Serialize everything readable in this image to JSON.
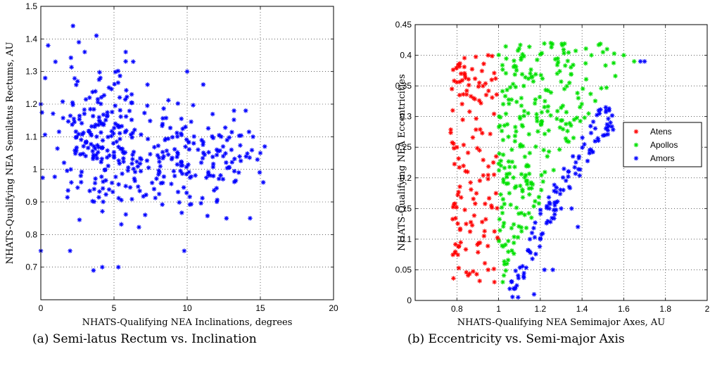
{
  "captions": {
    "a": "(a) Semi-latus Rectum vs. Inclination",
    "b": "(b) Eccentricity vs. Semi-major Axis"
  },
  "colors": {
    "red": "#ff0000",
    "green": "#00e000",
    "blue": "#0000ff"
  },
  "chart_data": [
    {
      "id": "a",
      "type": "scatter",
      "title": "",
      "xlabel": "NHATS-Qualifying NEA Inclinations, degrees",
      "ylabel": "NHATS-Qualifying NEA Semilatus Rectums, AU",
      "xlim": [
        0,
        20
      ],
      "ylim": [
        0.6,
        1.5
      ],
      "xticks": [
        0,
        5,
        10,
        15,
        20
      ],
      "yticks": [
        0.7,
        0.8,
        0.9,
        1,
        1.1,
        1.2,
        1.3,
        1.4,
        1.5
      ],
      "grid": true,
      "marker": "*",
      "series": [
        {
          "color": "#0000ff",
          "cluster_regions": [
            {
              "x_center": 4.5,
              "x_spread": 2.8,
              "y_center": 1.08,
              "y_spread": 0.17,
              "count": 230
            },
            {
              "x_center": 9.5,
              "x_spread": 2.5,
              "y_center": 1.02,
              "y_spread": 0.14,
              "count": 110
            },
            {
              "x_center": 13.0,
              "x_spread": 1.3,
              "y_center": 1.02,
              "y_spread": 0.1,
              "count": 40
            }
          ],
          "points": [
            [
              2.2,
              1.44
            ],
            [
              3.8,
              1.41
            ],
            [
              2.6,
              1.39
            ],
            [
              5.8,
              1.36
            ],
            [
              3.0,
              1.36
            ],
            [
              0.3,
              1.28
            ],
            [
              0.5,
              1.38
            ],
            [
              1.0,
              1.33
            ],
            [
              0.0,
              1.2
            ],
            [
              0.0,
              0.75
            ],
            [
              3.6,
              0.69
            ],
            [
              4.2,
              0.7
            ],
            [
              5.3,
              0.7
            ],
            [
              2.0,
              0.75
            ],
            [
              9.8,
              0.75
            ],
            [
              15.3,
              1.07
            ],
            [
              15.0,
              1.05
            ],
            [
              14.8,
              1.03
            ],
            [
              15.2,
              0.96
            ],
            [
              14.3,
              0.85
            ],
            [
              11.1,
              1.26
            ],
            [
              10.0,
              1.3
            ],
            [
              13.2,
              1.18
            ],
            [
              14.0,
              1.18
            ],
            [
              14.5,
              1.1
            ]
          ]
        }
      ]
    },
    {
      "id": "b",
      "type": "scatter",
      "title": "",
      "xlabel": "NHATS-Qualifying NEA Semimajor Axes, AU",
      "ylabel": "NHATS-Qualifying NEA Eccentricities",
      "xlim": [
        0.6,
        2
      ],
      "ylim": [
        0,
        0.45
      ],
      "xticks": [
        0.8,
        1,
        1.2,
        1.4,
        1.6,
        1.8,
        2
      ],
      "yticks": [
        0,
        0.05,
        0.1,
        0.15,
        0.2,
        0.25,
        0.3,
        0.35,
        0.4,
        0.45
      ],
      "grid": true,
      "marker": "*",
      "legend": {
        "position": "right",
        "entries": [
          "Atens",
          "Apollos",
          "Amors"
        ]
      },
      "series": [
        {
          "name": "Atens",
          "color": "#ff0000",
          "cluster_regions": [
            {
              "x_min": 0.77,
              "x_max": 1.0,
              "y_min": 0.03,
              "y_max": 0.4,
              "count": 140
            }
          ],
          "points": [
            [
              0.95,
              0.4
            ],
            [
              0.98,
              0.03
            ],
            [
              0.95,
              0.05
            ],
            [
              0.78,
              0.31
            ],
            [
              0.82,
              0.37
            ]
          ]
        },
        {
          "name": "Apollos",
          "color": "#00e000",
          "cluster_regions": [
            {
              "x_min": 1.0,
              "x_max": 1.6,
              "y_min": 0.03,
              "y_max": 0.42,
              "count": 260
            }
          ],
          "points": [
            [
              1.25,
              0.42
            ],
            [
              1.6,
              0.4
            ],
            [
              1.65,
              0.39
            ],
            [
              1.52,
              0.41
            ],
            [
              1.02,
              0.03
            ],
            [
              1.04,
              0.06
            ]
          ]
        },
        {
          "name": "Amors",
          "color": "#0000ff",
          "cluster_regions": [
            {
              "x_min": 1.05,
              "x_max": 1.55,
              "y_min": 0.01,
              "y_max": 0.33,
              "count": 110
            }
          ],
          "points": [
            [
              1.68,
              0.39
            ],
            [
              1.7,
              0.39
            ],
            [
              1.53,
              0.31
            ],
            [
              1.48,
              0.31
            ],
            [
              1.3,
              0.15
            ],
            [
              1.35,
              0.15
            ],
            [
              1.38,
              0.12
            ],
            [
              1.12,
              0.04
            ],
            [
              1.08,
              0.02
            ],
            [
              1.17,
              0.01
            ],
            [
              1.22,
              0.05
            ],
            [
              1.26,
              0.05
            ],
            [
              1.15,
              0.1
            ],
            [
              1.2,
              0.1
            ]
          ]
        }
      ]
    }
  ]
}
